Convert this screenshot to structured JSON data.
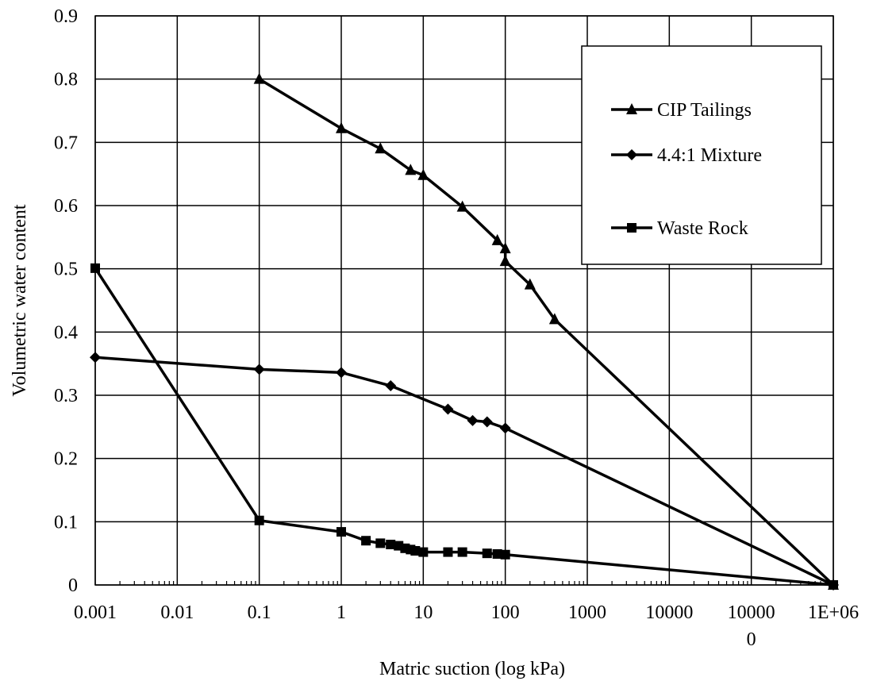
{
  "chart_data": {
    "type": "line",
    "xlabel": "Matric suction (log kPa)",
    "ylabel": "Volumetric water content",
    "x_scale": "log",
    "xlim": [
      0.001,
      1000000
    ],
    "ylim": [
      0,
      0.9
    ],
    "x_ticks": [
      0.001,
      0.01,
      0.1,
      1,
      10,
      100,
      1000,
      10000,
      100000,
      1000000
    ],
    "x_tick_labels": [
      "0.001",
      "0.01",
      "0.1",
      "1",
      "10",
      "100",
      "1000",
      "10000",
      "10000\n0",
      "1E+06"
    ],
    "y_ticks": [
      0,
      0.1,
      0.2,
      0.3,
      0.4,
      0.5,
      0.6,
      0.7,
      0.8,
      0.9
    ],
    "y_tick_labels": [
      "0",
      "0.1",
      "0.2",
      "0.3",
      "0.4",
      "0.5",
      "0.6",
      "0.7",
      "0.8",
      "0.9"
    ],
    "grid": true,
    "legend_position": "top-right",
    "series": [
      {
        "name": "CIP Tailings",
        "marker": "triangle",
        "color": "#000000",
        "x": [
          0.1,
          1,
          3,
          7,
          10,
          30,
          80,
          100,
          100,
          200,
          400,
          1000000
        ],
        "y": [
          0.8,
          0.722,
          0.69,
          0.656,
          0.648,
          0.598,
          0.545,
          0.532,
          0.512,
          0.475,
          0.42,
          0.0
        ]
      },
      {
        "name": "4.4:1 Mixture",
        "marker": "diamond",
        "color": "#000000",
        "x": [
          0.001,
          0.1,
          1,
          4,
          20,
          40,
          60,
          100,
          1000000
        ],
        "y": [
          0.36,
          0.341,
          0.336,
          0.315,
          0.278,
          0.26,
          0.258,
          0.248,
          0.0
        ]
      },
      {
        "name": "Waste Rock",
        "marker": "square",
        "color": "#000000",
        "x": [
          0.001,
          0.1,
          1,
          2,
          3,
          4,
          5,
          6,
          7,
          8,
          10,
          20,
          30,
          60,
          80,
          100,
          1000000
        ],
        "y": [
          0.501,
          0.102,
          0.084,
          0.07,
          0.066,
          0.064,
          0.062,
          0.058,
          0.056,
          0.054,
          0.052,
          0.052,
          0.052,
          0.05,
          0.049,
          0.048,
          0.0
        ]
      }
    ]
  }
}
